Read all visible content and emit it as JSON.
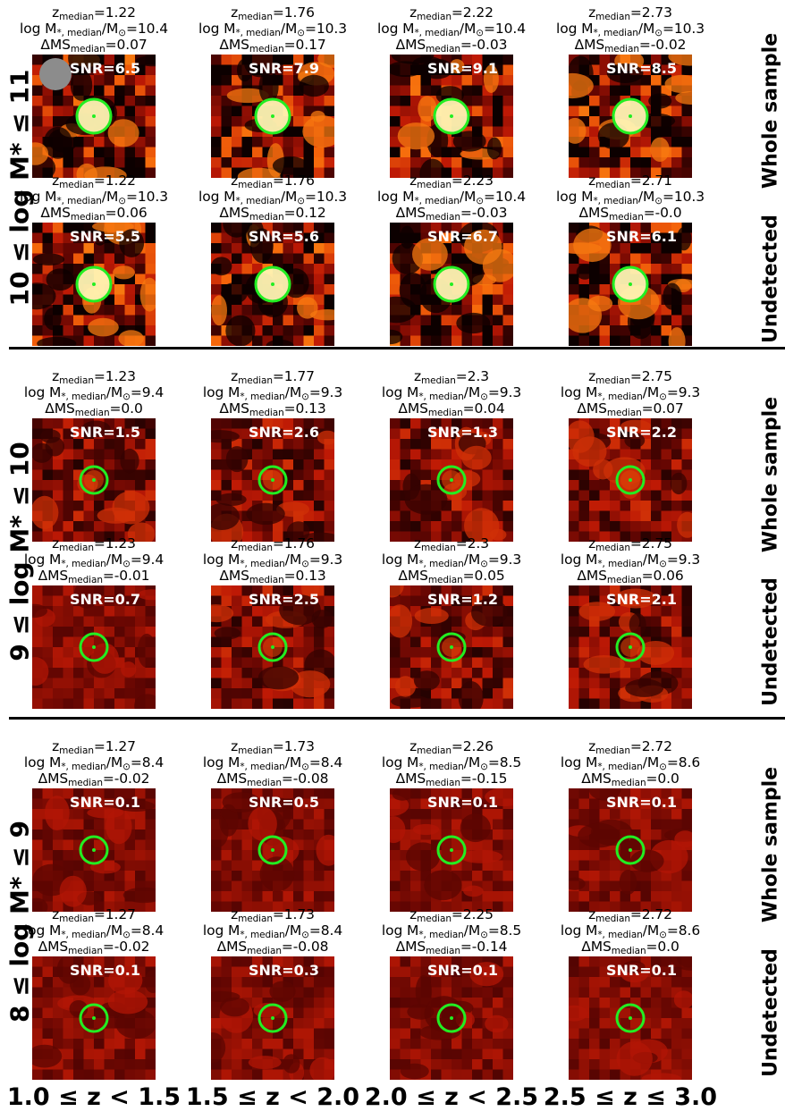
{
  "mass_bins": [
    {
      "label": "10 ≤ log M* ≤ 11",
      "rows": [
        {
          "sample": "Whole sample",
          "panels": [
            {
              "z": "1.22",
              "mass": "10.4",
              "dms": "0.07",
              "snr": "6.5"
            },
            {
              "z": "1.76",
              "mass": "10.3",
              "dms": "0.17",
              "snr": "7.9"
            },
            {
              "z": "2.22",
              "mass": "10.4",
              "dms": "-0.03",
              "snr": "9.1"
            },
            {
              "z": "2.73",
              "mass": "10.3",
              "dms": "-0.02",
              "snr": "8.5"
            }
          ]
        },
        {
          "sample": "Undetected",
          "panels": [
            {
              "z": "1.22",
              "mass": "10.3",
              "dms": "0.06",
              "snr": "5.5"
            },
            {
              "z": "1.76",
              "mass": "10.3",
              "dms": "0.12",
              "snr": "5.6"
            },
            {
              "z": "2.23",
              "mass": "10.4",
              "dms": "-0.03",
              "snr": "6.7"
            },
            {
              "z": "2.71",
              "mass": "10.3",
              "dms": "-0.0",
              "snr": "6.1"
            }
          ]
        }
      ]
    },
    {
      "label": "9 ≤ log M* ≤ 10",
      "rows": [
        {
          "sample": "Whole sample",
          "panels": [
            {
              "z": "1.23",
              "mass": "9.4",
              "dms": "0.0",
              "snr": "1.5"
            },
            {
              "z": "1.77",
              "mass": "9.3",
              "dms": "0.13",
              "snr": "2.6"
            },
            {
              "z": "2.3",
              "mass": "9.3",
              "dms": "0.04",
              "snr": "1.3"
            },
            {
              "z": "2.75",
              "mass": "9.3",
              "dms": "0.07",
              "snr": "2.2"
            }
          ]
        },
        {
          "sample": "Undetected",
          "panels": [
            {
              "z": "1.23",
              "mass": "9.4",
              "dms": "-0.01",
              "snr": "0.7"
            },
            {
              "z": "1.76",
              "mass": "9.3",
              "dms": "0.13",
              "snr": "2.5"
            },
            {
              "z": "2.3",
              "mass": "9.3",
              "dms": "0.05",
              "snr": "1.2"
            },
            {
              "z": "2.75",
              "mass": "9.3",
              "dms": "0.06",
              "snr": "2.1"
            }
          ]
        }
      ]
    },
    {
      "label": "8 ≤ log M* ≤ 9",
      "rows": [
        {
          "sample": "Whole sample",
          "panels": [
            {
              "z": "1.27",
              "mass": "8.4",
              "dms": "-0.02",
              "snr": "0.1"
            },
            {
              "z": "1.73",
              "mass": "8.4",
              "dms": "-0.08",
              "snr": "0.5"
            },
            {
              "z": "2.26",
              "mass": "8.5",
              "dms": "-0.15",
              "snr": "0.1"
            },
            {
              "z": "2.72",
              "mass": "8.6",
              "dms": "0.0",
              "snr": "0.1"
            }
          ]
        },
        {
          "sample": "Undetected",
          "panels": [
            {
              "z": "1.27",
              "mass": "8.4",
              "dms": "-0.02",
              "snr": "0.1"
            },
            {
              "z": "1.73",
              "mass": "8.4",
              "dms": "-0.08",
              "snr": "0.3"
            },
            {
              "z": "2.25",
              "mass": "8.5",
              "dms": "-0.14",
              "snr": "0.1"
            },
            {
              "z": "2.72",
              "mass": "8.6",
              "dms": "0.0",
              "snr": "0.1"
            }
          ]
        }
      ]
    }
  ],
  "column_labels": [
    "1.0 ≤ z < 1.5",
    "1.5 ≤ z < 2.0",
    "2.0 ≤ z < 2.5",
    "2.5 ≤ z ≤ 3.0"
  ],
  "header_text": {
    "z_prefix": "z",
    "z_sub": "median",
    "mass_prefix": "log M",
    "mass_sub": "*, median",
    "mass_mid": "/M",
    "mass_sub2": "⊙",
    "dms_prefix": "ΔMS",
    "dms_sub": "median",
    "snr_prefix": "SNR="
  },
  "colors": {
    "aperture": "#22ee22",
    "center_dot": "#22ee22",
    "beam": "#8c8c8c",
    "background": "#ffffff"
  }
}
